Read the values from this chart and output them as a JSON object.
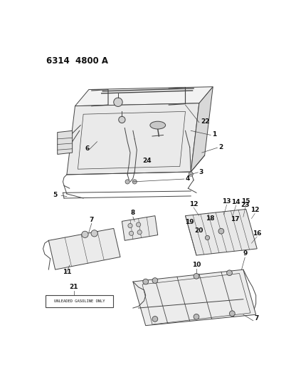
{
  "title": "6314  4800 A",
  "bg_color": "#ffffff",
  "lc": "#444444",
  "tc": "#111111",
  "title_fontsize": 8.5,
  "label_fontsize": 6.5,
  "fig_w": 4.1,
  "fig_h": 5.33,
  "dpi": 100,
  "unleaded_label": "UNLEADED GASOLINE ONLY"
}
